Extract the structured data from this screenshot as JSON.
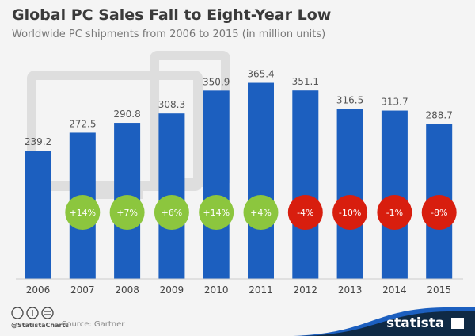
{
  "chart_data": {
    "type": "bar",
    "title": "Global PC Sales Fall to Eight-Year Low",
    "subtitle": "Worldwide PC shipments from 2006 to 2015 (in million units)",
    "categories": [
      "2006",
      "2007",
      "2008",
      "2009",
      "2010",
      "2011",
      "2012",
      "2013",
      "2014",
      "2015"
    ],
    "values": [
      239.2,
      272.5,
      290.8,
      308.3,
      350.9,
      365.4,
      351.1,
      316.5,
      313.7,
      288.7
    ],
    "value_labels": [
      "239.2",
      "272.5",
      "290.8",
      "308.3",
      "350.9",
      "365.4",
      "351.1",
      "316.5",
      "313.7",
      "288.7"
    ],
    "changes": [
      "",
      "+14%",
      "+7%",
      "+6%",
      "+14%",
      "+4%",
      "-4%",
      "-10%",
      "-1%",
      "-8%"
    ],
    "ylim": [
      0,
      380
    ],
    "grid": false,
    "colors": {
      "bar": "#1c5fbf",
      "positive": "#8cc63e",
      "negative": "#d81e0e"
    }
  },
  "footer": {
    "handle": "@StatistaCharts",
    "source": "Source: Gartner",
    "brand": "statista"
  }
}
